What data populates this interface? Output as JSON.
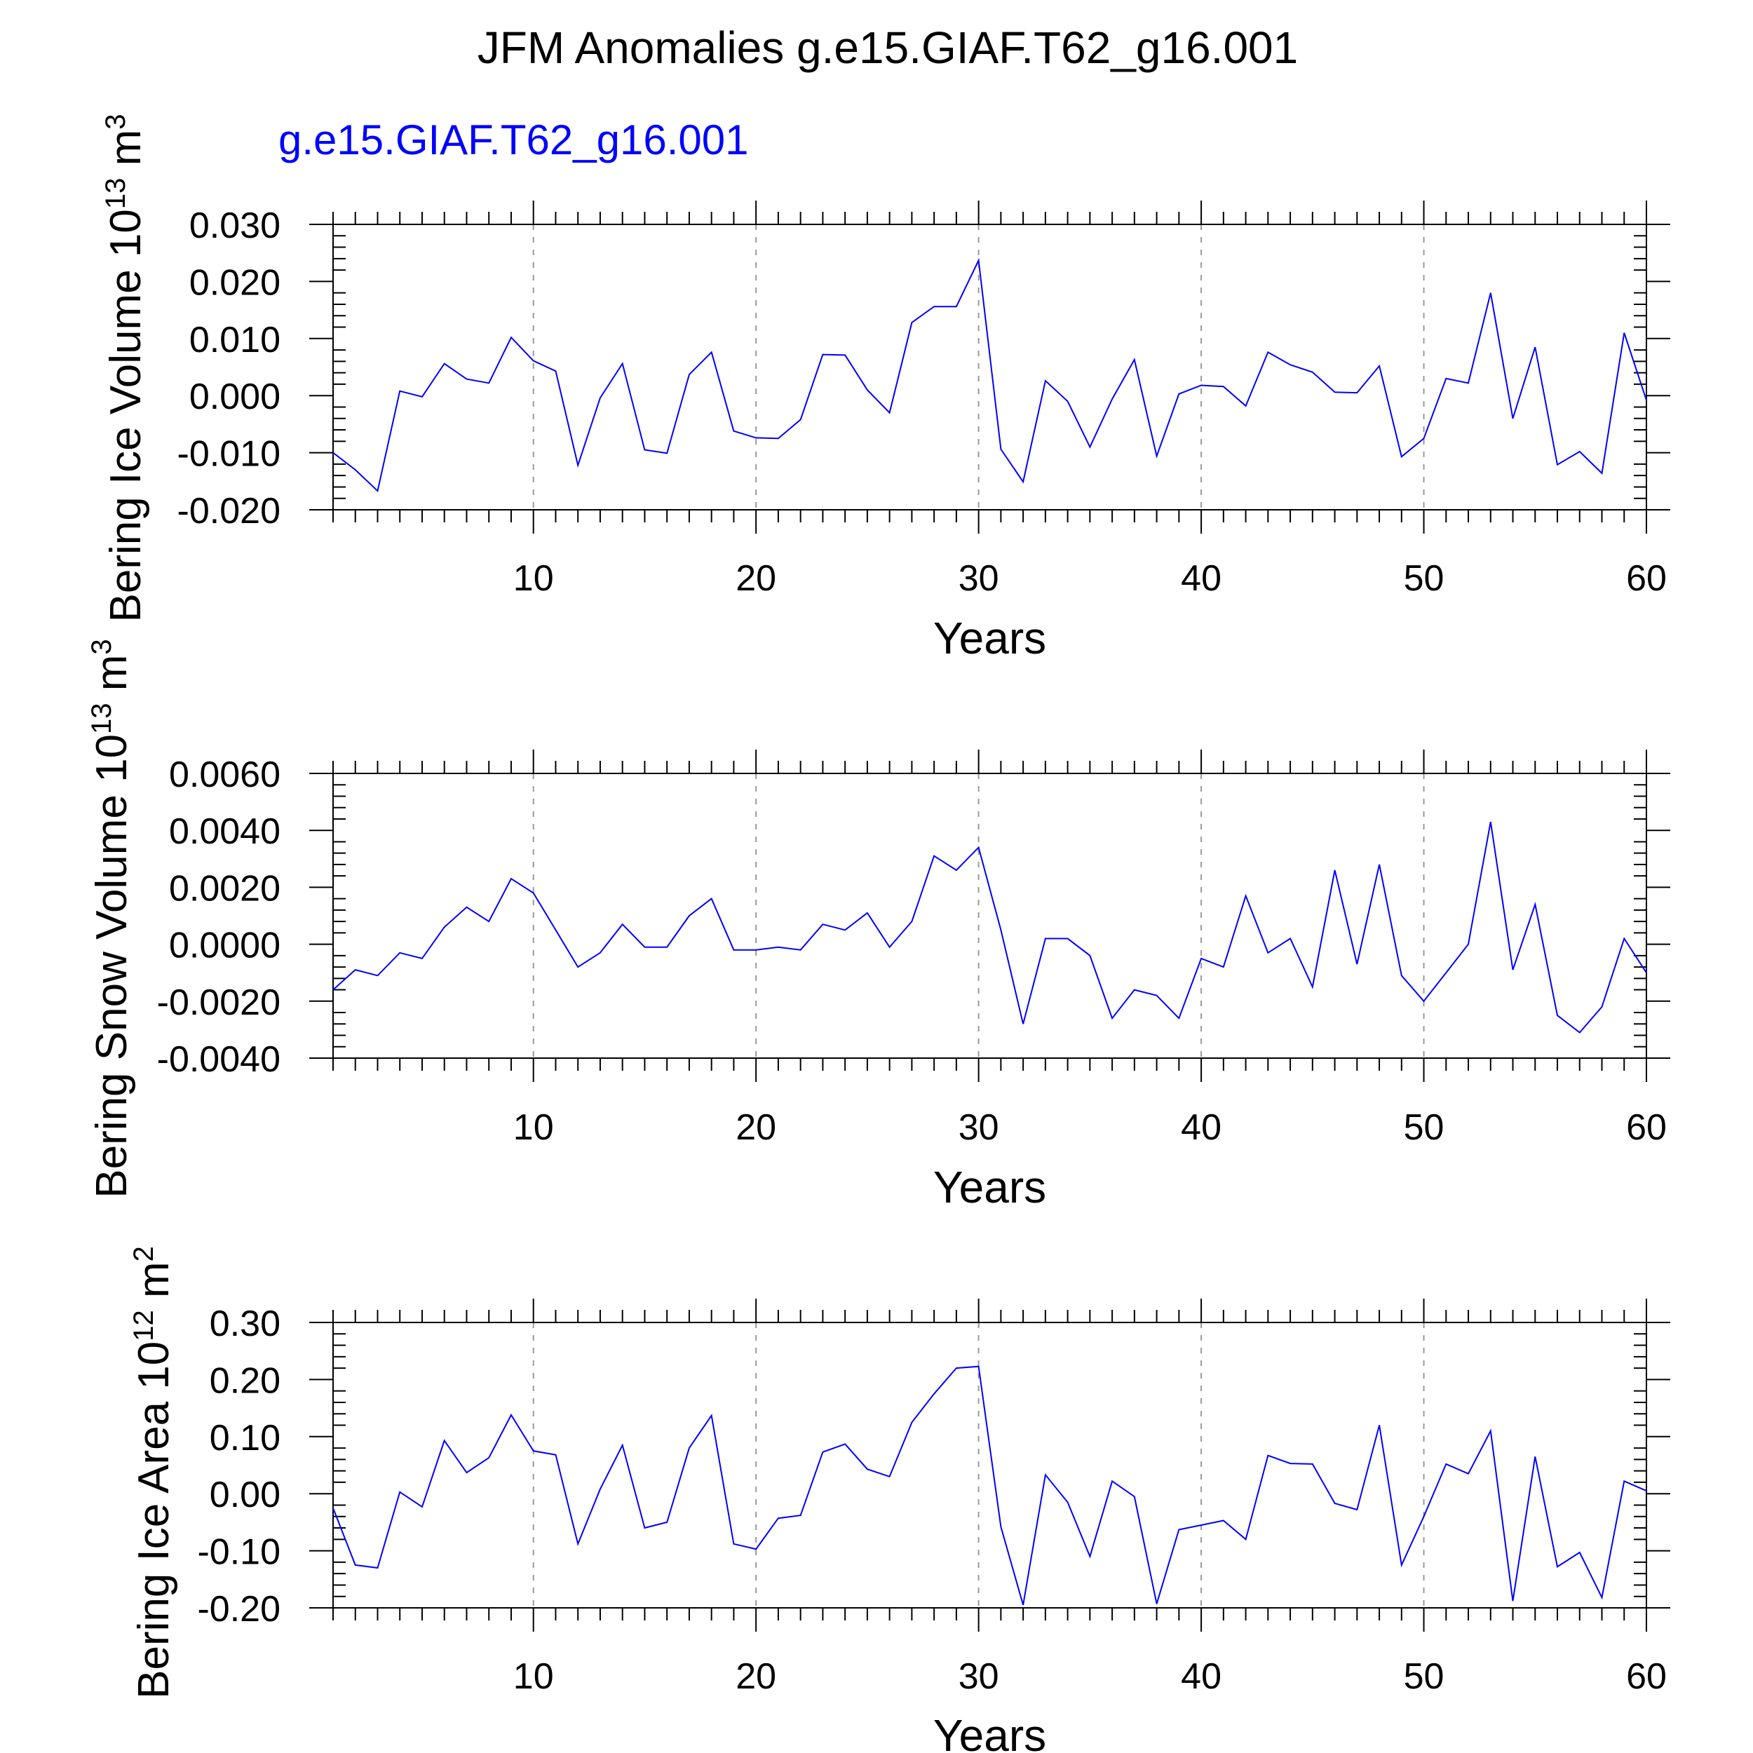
{
  "title": "JFM Anomalies g.e15.GIAF.T62_g16.001",
  "colors": {
    "series": "#0000ff",
    "grid": "#999999",
    "axis": "#000000"
  },
  "chart_data": [
    {
      "type": "line",
      "subtitle": "g.e15.GIAF.T62_g16.001",
      "xlabel": "Years",
      "ylabel": {
        "text": "Bering Ice Volume 10",
        "exp": "13",
        "unit": " m",
        "unit_exp": "3"
      },
      "xlim": [
        1,
        60
      ],
      "ylim": [
        -0.02,
        0.03
      ],
      "x_ticks": [
        "10",
        "20",
        "30",
        "40",
        "50",
        "60"
      ],
      "y_ticks": [
        "-0.020",
        "-0.010",
        "0.000",
        "0.010",
        "0.020",
        "0.030"
      ],
      "x_grid": [
        10,
        20,
        30,
        40,
        50
      ],
      "series": [
        {
          "values": [
            -0.01,
            -0.013,
            -0.0167,
            0.0008,
            -0.0002,
            0.0056,
            0.0029,
            0.0022,
            0.0102,
            0.0061,
            0.0043,
            -0.0122,
            -0.0004,
            0.0056,
            -0.0095,
            -0.0101,
            0.0037,
            0.0076,
            -0.0062,
            -0.0074,
            -0.0075,
            -0.0042,
            0.0072,
            0.0071,
            0.001,
            -0.003,
            0.0128,
            0.0156,
            0.0156,
            0.0237,
            -0.0094,
            -0.0151,
            0.0026,
            -0.001,
            -0.009,
            -0.0006,
            0.0063,
            -0.0106,
            0.0003,
            0.0018,
            0.0016,
            -0.0018,
            0.0076,
            0.0054,
            0.0041,
            0.0006,
            0.0005,
            0.0052,
            -0.0107,
            -0.0075,
            0.003,
            0.0022,
            0.018,
            -0.004,
            0.0085,
            -0.0121,
            -0.0098,
            -0.0136,
            0.011,
            -0.0008
          ]
        }
      ]
    },
    {
      "type": "line",
      "xlabel": "Years",
      "ylabel": {
        "text": "Bering Snow Volume 10",
        "exp": "13",
        "unit": " m",
        "unit_exp": "3"
      },
      "xlim": [
        1,
        60
      ],
      "ylim": [
        -0.004,
        0.006
      ],
      "x_ticks": [
        "10",
        "20",
        "30",
        "40",
        "50",
        "60"
      ],
      "y_ticks": [
        "-0.0040",
        "-0.0020",
        "0.0000",
        "0.0020",
        "0.0040",
        "0.0060"
      ],
      "x_grid": [
        10,
        20,
        30,
        40,
        50
      ],
      "series": [
        {
          "values": [
            -0.0016,
            -0.0009,
            -0.0011,
            -0.0003,
            -0.0005,
            0.0006,
            0.0013,
            0.0008,
            0.0023,
            0.0018,
            0.0005,
            -0.0008,
            -0.0003,
            0.0007,
            -0.0001,
            -0.0001,
            0.001,
            0.0016,
            -0.0002,
            -0.0002,
            -0.0001,
            -0.0002,
            0.0007,
            0.0005,
            0.0011,
            -0.0001,
            0.0008,
            0.0031,
            0.0026,
            0.0034,
            0.0005,
            -0.0028,
            0.0002,
            0.0002,
            -0.0004,
            -0.0026,
            -0.0016,
            -0.0018,
            -0.0026,
            -0.0005,
            -0.0008,
            0.0017,
            -0.0003,
            0.0002,
            -0.0015,
            0.0026,
            -0.0007,
            0.0028,
            -0.0011,
            -0.002,
            -0.001,
            0.0,
            0.0043,
            -0.0009,
            0.0014,
            -0.0025,
            -0.0031,
            -0.0022,
            0.0002,
            -0.001
          ]
        }
      ]
    },
    {
      "type": "line",
      "xlabel": "Years",
      "ylabel": {
        "text": "Bering Ice Area 10",
        "exp": "12",
        "unit": " m",
        "unit_exp": "2"
      },
      "xlim": [
        1,
        60
      ],
      "ylim": [
        -0.2,
        0.3
      ],
      "x_ticks": [
        "10",
        "20",
        "30",
        "40",
        "50",
        "60"
      ],
      "y_ticks": [
        "-0.20",
        "-0.10",
        "0.00",
        "0.10",
        "0.20",
        "0.30"
      ],
      "x_grid": [
        10,
        20,
        30,
        40,
        50
      ],
      "series": [
        {
          "values": [
            -0.025,
            -0.125,
            -0.13,
            0.003,
            -0.023,
            0.093,
            0.037,
            0.063,
            0.138,
            0.075,
            0.068,
            -0.088,
            0.008,
            0.085,
            -0.06,
            -0.05,
            0.08,
            0.137,
            -0.088,
            -0.097,
            -0.043,
            -0.038,
            0.073,
            0.087,
            0.043,
            0.03,
            0.125,
            0.175,
            0.22,
            0.223,
            -0.058,
            -0.195,
            0.033,
            -0.015,
            -0.11,
            0.022,
            -0.005,
            -0.193,
            -0.063,
            -0.055,
            -0.047,
            -0.08,
            0.067,
            0.053,
            0.052,
            -0.017,
            -0.028,
            0.12,
            -0.125,
            -0.04,
            0.052,
            0.035,
            0.11,
            -0.188,
            0.065,
            -0.128,
            -0.103,
            -0.182,
            0.022,
            0.005
          ]
        }
      ]
    }
  ]
}
